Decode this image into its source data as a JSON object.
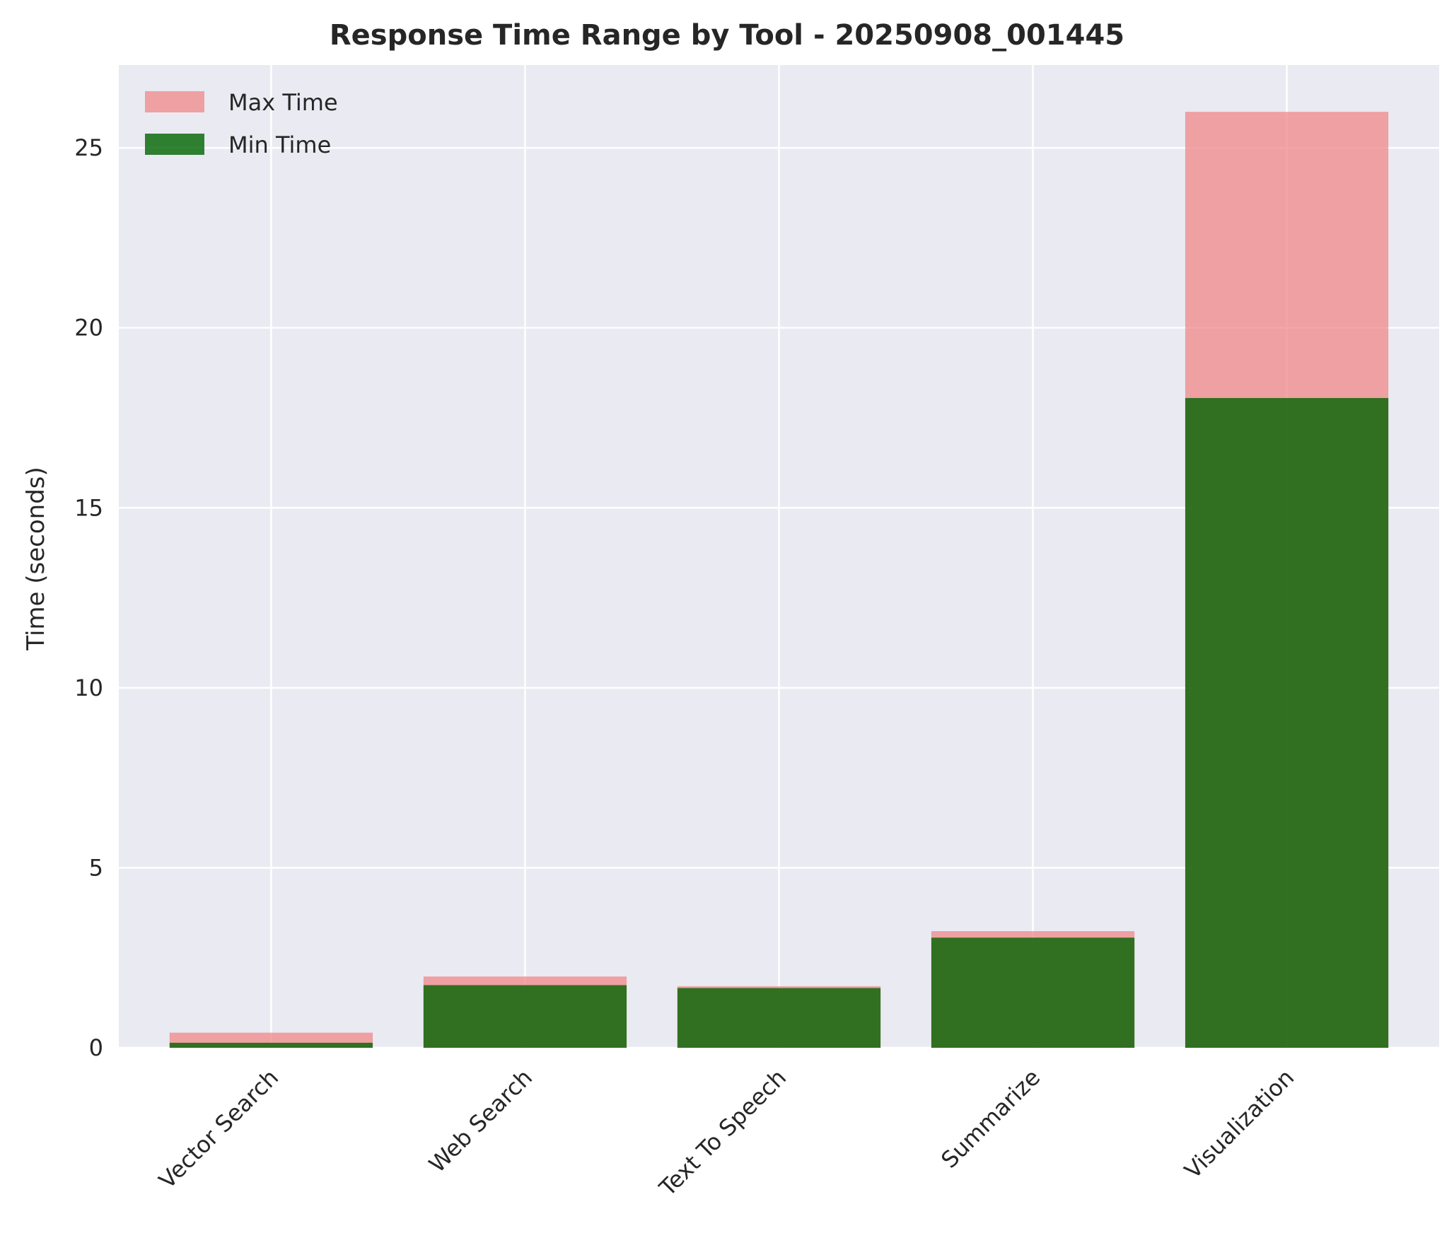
{
  "chart_data": {
    "type": "bar",
    "title": "Response Time Range by Tool - 20250908_001445",
    "xlabel": "",
    "ylabel": "Time (seconds)",
    "categories": [
      "Vector Search",
      "Web Search",
      "Text To Speech",
      "Summarize",
      "Visualization"
    ],
    "series": [
      {
        "name": "Max Time",
        "values": [
          0.42,
          1.98,
          1.71,
          3.24,
          26.0
        ],
        "color": "#f08080"
      },
      {
        "name": "Min Time",
        "values": [
          0.14,
          1.74,
          1.66,
          3.06,
          18.05
        ],
        "color": "#006400"
      }
    ],
    "ylim": [
      0,
      27.3
    ],
    "yticks": [
      0,
      5,
      10,
      15,
      20,
      25
    ],
    "ytick_labels": [
      "0",
      "5",
      "10",
      "15",
      "20",
      "25"
    ],
    "grid": true,
    "legend_position": "top-left",
    "plot_background": "#eaeaf2",
    "grid_color": "#ffffff"
  }
}
